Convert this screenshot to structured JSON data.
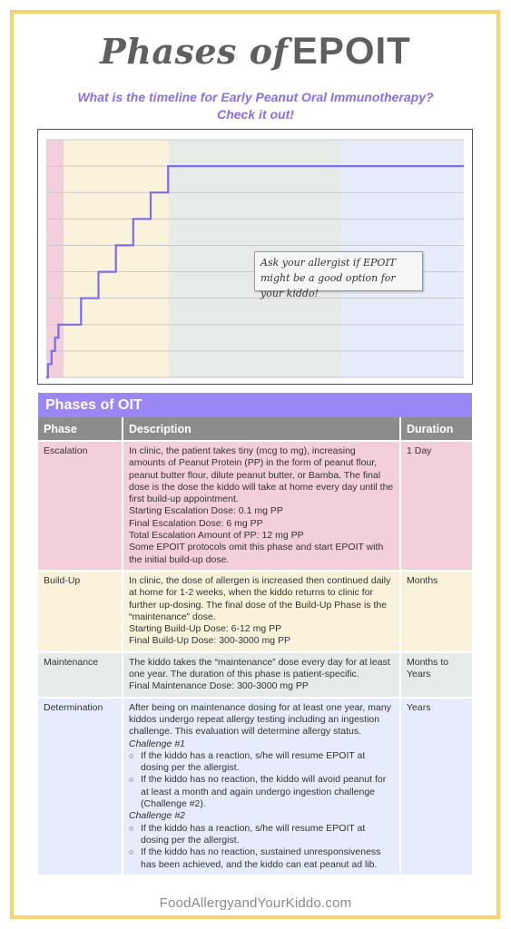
{
  "header": {
    "title_script": "Phases of",
    "title_bold": "EPOIT",
    "subtitle_line1": "What is the timeline for Early Peanut Oral Immunotherapy?",
    "subtitle_line2": "Check it out!"
  },
  "chart_data": {
    "type": "line",
    "title": "",
    "xlabel": "",
    "ylabel": "",
    "phases": [
      {
        "name": "Escalation",
        "color": "#f3cfdb",
        "x_start": 0,
        "x_end": 1
      },
      {
        "name": "Build-Up",
        "color": "#fbf2dc",
        "x_start": 1,
        "x_end": 7
      },
      {
        "name": "Maintenance",
        "color": "#e6ebe7",
        "x_start": 7,
        "x_end": 17
      },
      {
        "name": "Determination",
        "color": "#e6ecfb",
        "x_start": 17,
        "x_end": 24
      }
    ],
    "xlim": [
      0,
      24
    ],
    "ylim": [
      0,
      9
    ],
    "grid": true,
    "line_color": "#7b6cf0",
    "series": [
      {
        "x": [
          0,
          0.1,
          0.1,
          0.3,
          0.3,
          0.5,
          0.5,
          0.7,
          0.7,
          1,
          1,
          2,
          2,
          3,
          3,
          4,
          4,
          5,
          5,
          6,
          6,
          7,
          7,
          24
        ],
        "y": [
          0,
          0,
          0.5,
          0.5,
          1,
          1,
          1.5,
          1.5,
          2,
          2,
          2,
          2,
          3,
          3,
          4,
          4,
          5,
          5,
          6,
          6,
          7,
          7,
          8,
          8
        ]
      }
    ],
    "annotation": "Ask your allergist if EPOIT might be a good option for your kiddo!"
  },
  "table": {
    "banner": "Phases of OIT",
    "headers": {
      "phase": "Phase",
      "description": "Description",
      "duration": "Duration"
    },
    "rows": {
      "escalation": {
        "phase": "Escalation",
        "duration": "1 Day",
        "description": [
          "In clinic, the patient takes tiny (mcg to mg), increasing amounts of Peanut Protein (PP) in the form of peanut flour, peanut butter flour, dilute peanut butter, or Bamba. The final dose is the dose the kiddo will take at home every day until the first build-up appointment.",
          "Starting Escalation Dose: 0.1 mg PP",
          "Final Escalation Dose: 6 mg PP",
          "Total Escalation Amount of PP: 12 mg PP",
          "Some EPOIT protocols omit this phase and start EPOIT with the initial build-up dose."
        ]
      },
      "buildup": {
        "phase": "Build-Up",
        "duration": "Months",
        "description": [
          "In clinic, the dose of allergen is increased then continued daily at home for 1-2 weeks, when the kiddo returns to clinic for further up-dosing. The final dose of the Build-Up Phase is the “maintenance” dose.",
          "Starting Build-Up Dose: 6-12 mg PP",
          "Final Build-Up Dose: 300-3000 mg PP"
        ]
      },
      "maintenance": {
        "phase": "Maintenance",
        "duration": "Months to Years",
        "description": [
          "The kiddo takes the “maintenance” dose every day for at least one year. The duration of this phase is patient-specific.",
          "Final Maintenance Dose: 300-3000 mg PP"
        ]
      },
      "determination": {
        "phase": "Determination",
        "duration": "Years",
        "intro": "After being on maintenance dosing for at least one year, many kiddos undergo repeat allergy testing including an ingestion challenge. This evaluation will determine allergy status.",
        "challenge1": "Challenge #1",
        "c1_bullets": [
          "If the kiddo has a reaction, s/he will resume EPOIT at dosing per the allergist.",
          "If the kiddo has no reaction, the kiddo will avoid peanut for at least a month and again undergo ingestion challenge (Challenge #2)."
        ],
        "challenge2": "Challenge #2",
        "c2_bullets": [
          "If the kiddo has a reaction, s/he will resume EPOIT at dosing per the allergist.",
          "If the kiddo has no reaction, sustained unresponsiveness has been achieved, and the kiddo can eat peanut ad lib."
        ],
        "bullet_symbol": "○"
      }
    }
  },
  "footer": {
    "site": "FoodAllergyandYourKiddo.com"
  }
}
